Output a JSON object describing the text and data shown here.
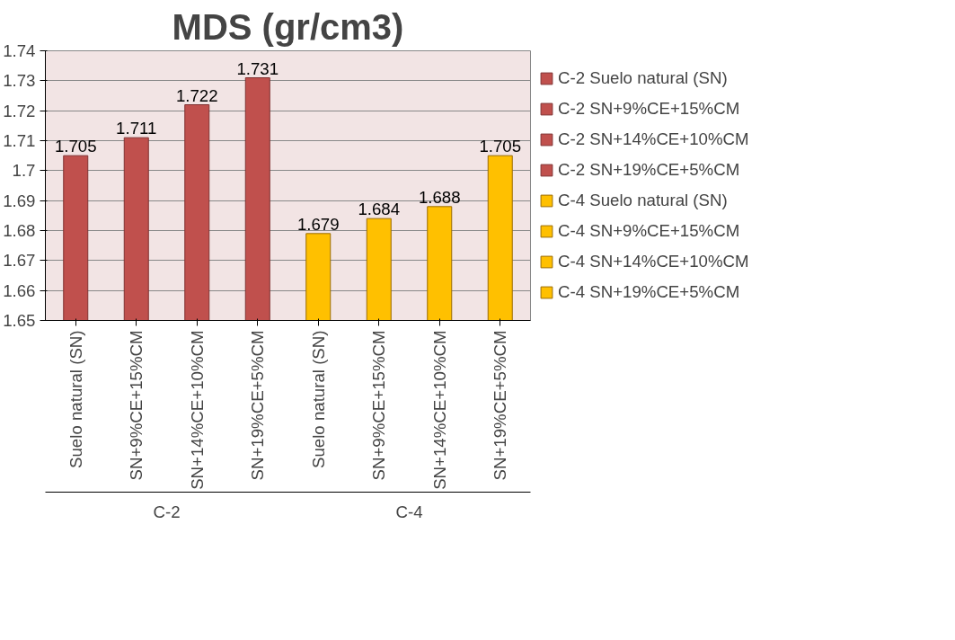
{
  "chart_data": {
    "type": "bar",
    "title": "MDS (gr/cm3)",
    "categories": [
      "Suelo natural (SN)",
      "SN+9%CE+15%CM",
      "SN+14%CE+10%CM",
      "SN+19%CE+5%CM",
      "Suelo natural (SN)",
      "SN+9%CE+15%CM",
      "SN+14%CE+10%CM",
      "SN+19%CE+5%CM"
    ],
    "series": [
      {
        "name": "C-2 Suelo natural (SN)",
        "color": "#c0504d",
        "values": [
          1.705,
          null,
          null,
          null,
          null,
          null,
          null,
          null
        ]
      },
      {
        "name": "C-2 SN+9%CE+15%CM",
        "color": "#c0504d",
        "values": [
          null,
          1.711,
          null,
          null,
          null,
          null,
          null,
          null
        ]
      },
      {
        "name": "C-2 SN+14%CE+10%CM",
        "color": "#c0504d",
        "values": [
          null,
          null,
          1.722,
          null,
          null,
          null,
          null,
          null
        ]
      },
      {
        "name": "C-2 SN+19%CE+5%CM",
        "color": "#c0504d",
        "values": [
          null,
          null,
          null,
          1.731,
          null,
          null,
          null,
          null
        ]
      },
      {
        "name": "C-4 Suelo natural (SN)",
        "color": "#ffc000",
        "values": [
          null,
          null,
          null,
          null,
          1.679,
          null,
          null,
          null
        ]
      },
      {
        "name": "C-4 SN+9%CE+15%CM",
        "color": "#ffc000",
        "values": [
          null,
          null,
          null,
          null,
          null,
          1.684,
          null,
          null
        ]
      },
      {
        "name": "C-4 SN+14%CE+10%CM",
        "color": "#ffc000",
        "values": [
          null,
          null,
          null,
          null,
          null,
          null,
          1.688,
          null
        ]
      },
      {
        "name": "C-4 SN+19%CE+5%CM",
        "color": "#ffc000",
        "values": [
          null,
          null,
          null,
          null,
          null,
          null,
          null,
          1.705
        ]
      }
    ],
    "annotations": [
      "C-2",
      "C-4"
    ],
    "ylim": [
      1.65,
      1.74
    ],
    "yticks": [
      1.65,
      1.66,
      1.67,
      1.68,
      1.69,
      1.7,
      1.71,
      1.72,
      1.73,
      1.74
    ],
    "data_labels": true,
    "grid": "y",
    "legend": "right"
  }
}
